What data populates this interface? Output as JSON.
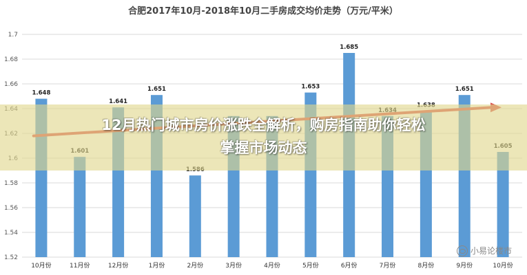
{
  "chart_data": {
    "type": "bar",
    "title": "合肥2017年10月-2018年10月二手房成交均价走势（万元/平米）",
    "categories": [
      "10月份",
      "11月份",
      "12月份",
      "1月份",
      "2月份",
      "3月份",
      "4月份",
      "5月份",
      "6月份",
      "7月份",
      "8月份",
      "9月份",
      "10月份"
    ],
    "values": [
      1.648,
      1.601,
      1.641,
      1.651,
      1.586,
      1.634,
      1.634,
      1.653,
      1.685,
      1.634,
      1.638,
      1.651,
      1.605
    ],
    "value_labels": [
      "1.648",
      "1.601",
      "1.641",
      "1.651",
      "1.586",
      "",
      "",
      "1.653",
      "1.685",
      "1.634",
      "1.638",
      "1.651",
      "1.605"
    ],
    "ylim": [
      1.52,
      1.7
    ],
    "yticks": [
      "1.52",
      "1.54",
      "1.56",
      "1.58",
      "1.6",
      "1.62",
      "1.64",
      "1.66",
      "1.68",
      "1.7"
    ],
    "grid": true,
    "bar_color": "#5b9bd5",
    "trend_arrow_color": "#d9534f"
  },
  "banner": {
    "line1": "12月热门城市房价涨跌全解析，购房指南助你轻松",
    "line2": "掌握市场动态"
  },
  "watermark": {
    "text": "小易论楼市"
  }
}
